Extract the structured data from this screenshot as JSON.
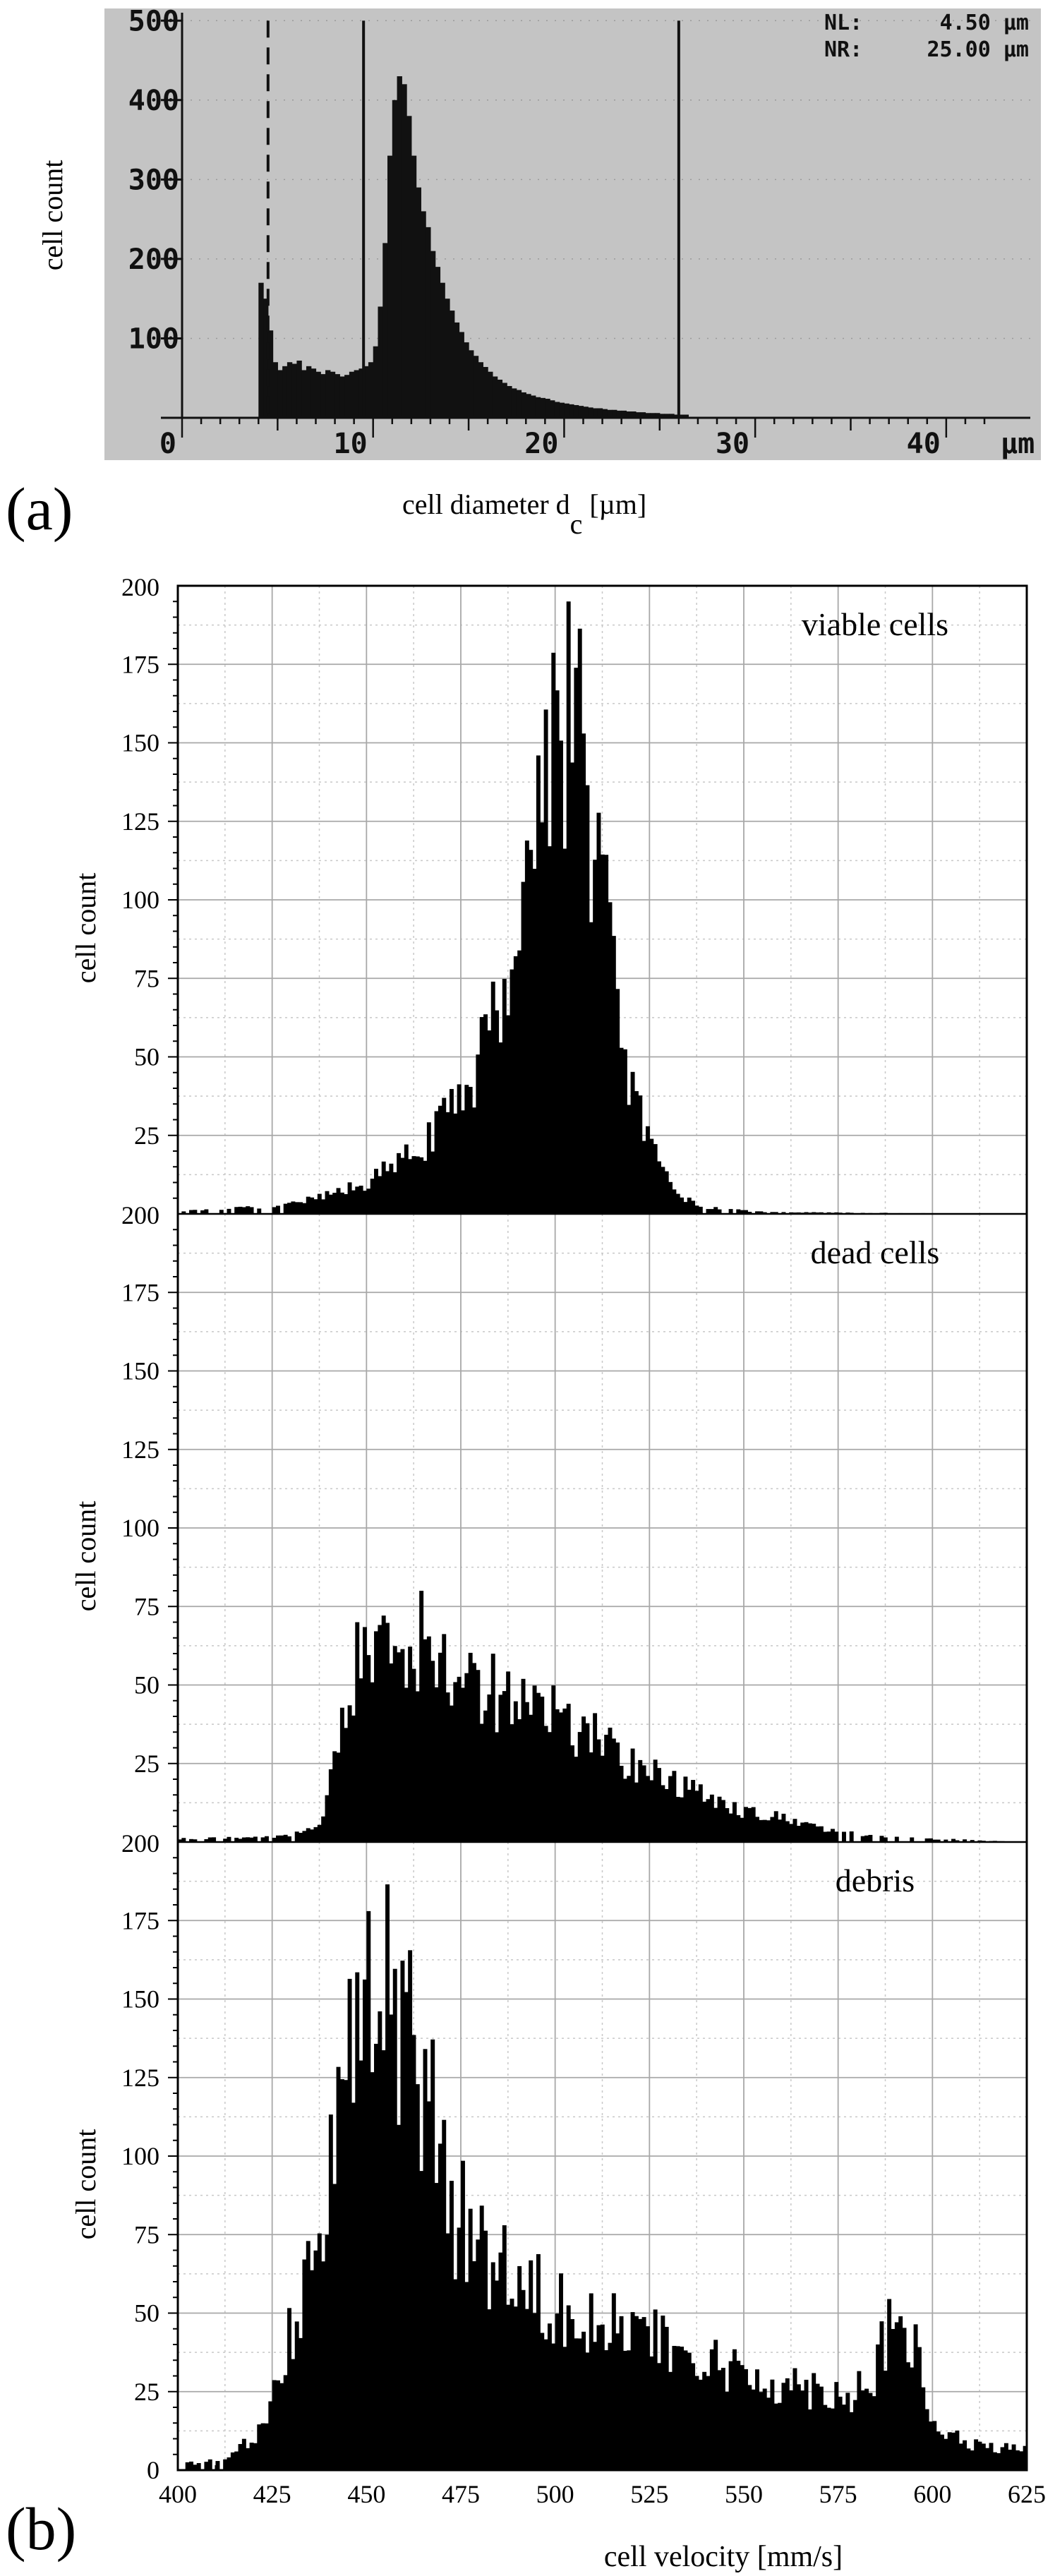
{
  "chart_data": [
    {
      "panel_label": "(a)",
      "type": "bar",
      "ylabel": "cell count",
      "xlabel_main": "cell diameter d",
      "xlabel_sub": "c",
      "xlabel_unit": "[µm]",
      "screen_y_ticks": [
        "100",
        "200",
        "300",
        "400",
        "500"
      ],
      "screen_x_ticks": [
        "0",
        "10",
        "20",
        "30",
        "40"
      ],
      "screen_x_unit": "µm",
      "readout": [
        {
          "key": "NL:",
          "value": "4.50 µm"
        },
        {
          "key": "NR:",
          "value": "25.00 µm"
        }
      ],
      "xlim": [
        0,
        42
      ],
      "ylim": [
        0,
        510
      ],
      "gates": [
        {
          "x": 4.5,
          "style": "dashed"
        },
        {
          "x": 9.5,
          "style": "solid"
        },
        {
          "x": 26.0,
          "style": "solid"
        }
      ],
      "histogram": {
        "x_start": 4.0,
        "bin_width": 0.25,
        "values": [
          170,
          150,
          110,
          70,
          60,
          65,
          70,
          68,
          72,
          60,
          65,
          62,
          58,
          55,
          60,
          58,
          55,
          52,
          54,
          58,
          60,
          62,
          65,
          70,
          90,
          140,
          220,
          330,
          400,
          430,
          420,
          380,
          330,
          290,
          260,
          240,
          210,
          190,
          170,
          150,
          135,
          120,
          108,
          95,
          85,
          78,
          70,
          64,
          58,
          52,
          48,
          44,
          40,
          37,
          35,
          32,
          30,
          28,
          26,
          25,
          24,
          22,
          20,
          19,
          18,
          17,
          16,
          15,
          14,
          13,
          12,
          12,
          11,
          10,
          10,
          9,
          9,
          8,
          8,
          7,
          7,
          6,
          6,
          6,
          5,
          5,
          5,
          4,
          4,
          4
        ]
      }
    },
    {
      "panel_label": "(b)",
      "type": "bar",
      "xlabel": "cell velocity [mm/s]",
      "x_ticks": [
        "400",
        "425",
        "450",
        "475",
        "500",
        "525",
        "550",
        "575",
        "600",
        "625"
      ],
      "y_ticks": [
        "25",
        "50",
        "75",
        "100",
        "125",
        "150",
        "175",
        "200"
      ],
      "bottom_tick_label": "0",
      "xlim": [
        400,
        625
      ],
      "ylim": [
        0,
        200
      ],
      "bin_width": 1,
      "series": [
        {
          "name": "viable cells",
          "ylabel": "cell count",
          "peak": 195,
          "knots": [
            [
              400,
              1
            ],
            [
              420,
              2
            ],
            [
              430,
              3
            ],
            [
              440,
              6
            ],
            [
              450,
              10
            ],
            [
              460,
              17
            ],
            [
              470,
              28
            ],
            [
              478,
              45
            ],
            [
              484,
              62
            ],
            [
              490,
              95
            ],
            [
              495,
              125
            ],
            [
              500,
              160
            ],
            [
              504,
              162
            ],
            [
              508,
              140
            ],
            [
              512,
              110
            ],
            [
              516,
              70
            ],
            [
              520,
              42
            ],
            [
              524,
              25
            ],
            [
              528,
              13
            ],
            [
              532,
              7
            ],
            [
              536,
              4
            ],
            [
              540,
              2
            ],
            [
              550,
              1
            ],
            [
              560,
              0.5
            ],
            [
              625,
              0
            ]
          ]
        },
        {
          "name": "dead cells",
          "ylabel": "cell count",
          "peak": 80,
          "knots": [
            [
              400,
              1
            ],
            [
              420,
              1.5
            ],
            [
              430,
              2
            ],
            [
              437,
              5
            ],
            [
              440,
              15
            ],
            [
              443,
              40
            ],
            [
              447,
              55
            ],
            [
              452,
              62
            ],
            [
              458,
              66
            ],
            [
              465,
              63
            ],
            [
              475,
              55
            ],
            [
              485,
              48
            ],
            [
              495,
              43
            ],
            [
              505,
              37
            ],
            [
              515,
              30
            ],
            [
              525,
              22
            ],
            [
              535,
              17
            ],
            [
              545,
              12
            ],
            [
              555,
              9
            ],
            [
              565,
              6
            ],
            [
              575,
              3
            ],
            [
              585,
              2
            ],
            [
              600,
              1
            ],
            [
              625,
              0
            ]
          ]
        },
        {
          "name": "debris",
          "ylabel": "cell count",
          "peak": 178,
          "knots": [
            [
              400,
              2
            ],
            [
              412,
              3
            ],
            [
              420,
              10
            ],
            [
              425,
              22
            ],
            [
              430,
              45
            ],
            [
              435,
              70
            ],
            [
              440,
              100
            ],
            [
              445,
              130
            ],
            [
              450,
              150
            ],
            [
              454,
              155
            ],
            [
              458,
              148
            ],
            [
              463,
              130
            ],
            [
              468,
              105
            ],
            [
              473,
              85
            ],
            [
              480,
              72
            ],
            [
              490,
              62
            ],
            [
              500,
              55
            ],
            [
              510,
              50
            ],
            [
              520,
              44
            ],
            [
              530,
              38
            ],
            [
              540,
              34
            ],
            [
              550,
              30
            ],
            [
              560,
              28
            ],
            [
              570,
              26
            ],
            [
              578,
              24
            ],
            [
              584,
              30
            ],
            [
              588,
              42
            ],
            [
              592,
              48
            ],
            [
              596,
              35
            ],
            [
              600,
              14
            ],
            [
              610,
              8
            ],
            [
              625,
              6
            ]
          ]
        }
      ]
    }
  ]
}
